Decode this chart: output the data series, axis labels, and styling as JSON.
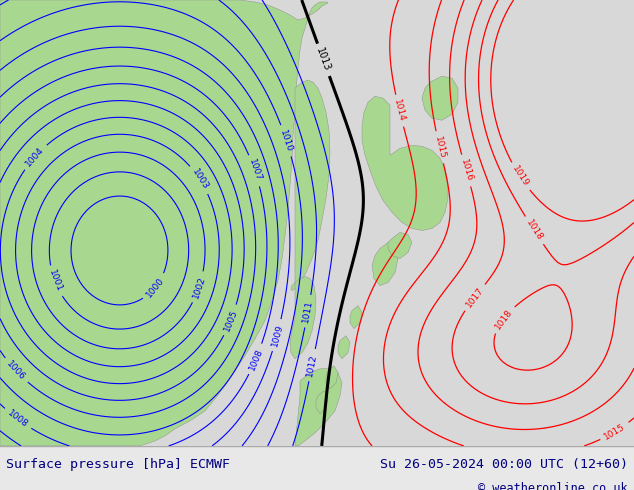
{
  "title_left": "Surface pressure [hPa] ECMWF",
  "title_right": "Su 26-05-2024 00:00 UTC (12+60)",
  "copyright": "© weatheronline.co.uk",
  "bg_color": "#c8c8c8",
  "land_green": "#a8d890",
  "land_gray": "#b8b8b8",
  "sea_light": "#d8d8d8",
  "bottom_bg": "#e8e8e8",
  "title_color": "#000080",
  "figsize": [
    6.34,
    4.9
  ],
  "dpi": 100
}
